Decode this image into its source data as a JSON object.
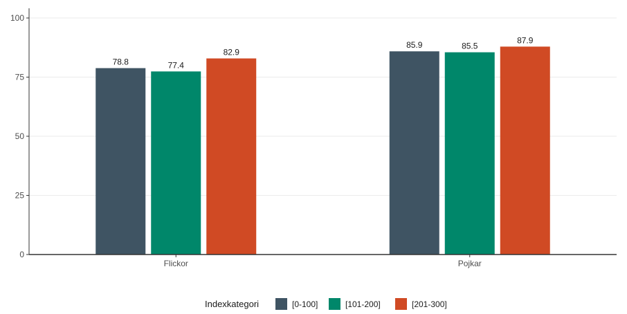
{
  "chart_data": {
    "type": "bar",
    "title": "",
    "xlabel": "",
    "ylabel": "",
    "categories": [
      "Flickor",
      "Pojkar"
    ],
    "ylim": [
      0,
      100
    ],
    "yticks": [
      0,
      25,
      50,
      75,
      100
    ],
    "grid": "horizontal",
    "legend": {
      "title": "Indexkategori",
      "placement": "bottom"
    },
    "series": [
      {
        "name": "[0-100]",
        "color": "#3f5463",
        "values": [
          78.8,
          85.9
        ],
        "labels": [
          "78.8",
          "85.9"
        ]
      },
      {
        "name": "[101-200]",
        "color": "#00876a",
        "values": [
          77.4,
          85.5
        ],
        "labels": [
          "77.4",
          "85.5"
        ]
      },
      {
        "name": "[201-300]",
        "color": "#d04a24",
        "values": [
          82.9,
          87.9
        ],
        "labels": [
          "82.9",
          "87.9"
        ]
      }
    ]
  }
}
